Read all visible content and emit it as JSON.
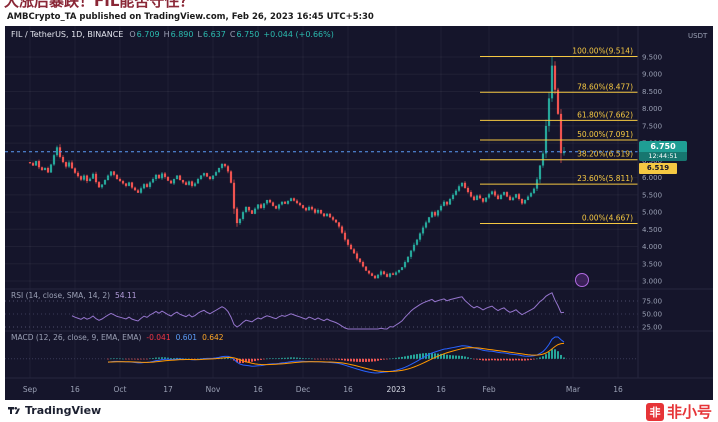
{
  "page": {
    "clipped_title": "大涨后暴跌！FIL能否守住？",
    "byline": "AMBCrypto_TA published on TradingView.com, Feb 26, 2023 16:45 UTC+5:30"
  },
  "legend": {
    "symbol": "FIL / TetherUS, 1D, BINANCE",
    "o_label": "O",
    "o": "6.709",
    "h_label": "H",
    "h": "6.890",
    "l_label": "L",
    "l": "6.637",
    "c_label": "C",
    "c": "6.750",
    "change": "+0.044 (+0.66%)"
  },
  "price_scale": {
    "currency": "USDT",
    "labels": [
      "9.500",
      "9.000",
      "8.500",
      "8.000",
      "7.500",
      "7.000",
      "6.500",
      "6.000",
      "5.500",
      "5.000",
      "4.500",
      "4.000",
      "3.500",
      "3.000"
    ]
  },
  "badges": {
    "price": "6.750",
    "countdown": "12:44:51",
    "fib_badge": "6.519"
  },
  "fib_levels": [
    {
      "label": "100.00%(9.514)",
      "price": 9.514
    },
    {
      "label": "78.60%(8.477)",
      "price": 8.477
    },
    {
      "label": "61.80%(7.662)",
      "price": 7.662
    },
    {
      "label": "50.00%(7.091)",
      "price": 7.091
    },
    {
      "label": "38.20%(6.519)",
      "price": 6.519
    },
    {
      "label": "23.60%(5.811)",
      "price": 5.811
    },
    {
      "label": "0.00%(4.667)",
      "price": 4.667
    }
  ],
  "rsi": {
    "title": "RSI (14, close, SMA, 14, 2)",
    "value": "54.11",
    "scale": [
      "75.00",
      "50.00",
      "25.00"
    ],
    "scale_values": [
      75,
      50,
      25
    ]
  },
  "macd": {
    "title": "MACD (12, 26, close, 9, EMA, EMA)",
    "hist": "-0.041",
    "macd": "0.601",
    "signal": "0.642"
  },
  "time_axis": [
    {
      "label": "Sep",
      "day": 0
    },
    {
      "label": "16",
      "day": 15
    },
    {
      "label": "Oct",
      "day": 30
    },
    {
      "label": "17",
      "day": 46
    },
    {
      "label": "Nov",
      "day": 61
    },
    {
      "label": "16",
      "day": 76
    },
    {
      "label": "Dec",
      "day": 91
    },
    {
      "label": "16",
      "day": 106
    },
    {
      "label": "2023",
      "day": 122,
      "bright": true
    },
    {
      "label": "16",
      "day": 137
    },
    {
      "label": "Feb",
      "day": 153
    },
    {
      "label": "Mar",
      "day": 181
    },
    {
      "label": "16",
      "day": 196
    }
  ],
  "footer": {
    "tradingview": "TradingView",
    "watermark": "非小号",
    "watermark_icon": "非"
  },
  "colors": {
    "up": "#26a69a",
    "down": "#ef5350",
    "fib": "#f5c842",
    "dashed_close": "#5b9cf6",
    "rsi_line": "#9575cd",
    "macd_line": "#2962ff",
    "signal_line": "#ff9800",
    "axis_text": "#9aa0b4",
    "separator": "#26263f",
    "grid": "rgba(255,255,255,0.05)"
  },
  "chart_data": {
    "type": "candlestick",
    "title": "FIL / TetherUS, 1D, BINANCE",
    "ylabel": "Price (USDT)",
    "ylim": [
      2.8,
      10.4
    ],
    "x_start": "2022-09-01",
    "x_end": "2023-02-26",
    "last_close": 6.75,
    "closes": [
      6.42,
      6.35,
      6.48,
      6.3,
      6.22,
      6.28,
      6.15,
      6.38,
      6.65,
      6.88,
      6.6,
      6.45,
      6.32,
      6.44,
      6.27,
      6.14,
      6.04,
      5.94,
      6.06,
      5.9,
      5.97,
      6.11,
      5.87,
      5.72,
      5.8,
      5.93,
      6.06,
      6.18,
      6.08,
      5.96,
      5.9,
      5.83,
      5.76,
      5.86,
      5.71,
      5.63,
      5.56,
      5.69,
      5.81,
      5.73,
      5.86,
      5.96,
      6.08,
      5.98,
      6.12,
      6.02,
      5.91,
      5.83,
      5.96,
      6.06,
      5.93,
      5.86,
      5.79,
      5.89,
      5.76,
      5.83,
      5.96,
      6.06,
      6.13,
      6.03,
      5.96,
      6.06,
      6.16,
      6.28,
      6.4,
      6.33,
      6.18,
      5.85,
      5.1,
      4.68,
      4.8,
      5.0,
      5.15,
      5.05,
      4.95,
      5.1,
      5.22,
      5.12,
      5.25,
      5.35,
      5.28,
      5.18,
      5.1,
      5.22,
      5.3,
      5.24,
      5.32,
      5.4,
      5.33,
      5.26,
      5.2,
      5.12,
      5.05,
      5.15,
      5.08,
      4.98,
      5.06,
      4.96,
      4.88,
      4.95,
      4.85,
      4.78,
      4.7,
      4.58,
      4.4,
      4.2,
      4.05,
      3.92,
      3.8,
      3.65,
      3.55,
      3.42,
      3.3,
      3.22,
      3.15,
      3.08,
      3.18,
      3.28,
      3.2,
      3.12,
      3.22,
      3.18,
      3.25,
      3.32,
      3.4,
      3.55,
      3.7,
      3.88,
      4.05,
      4.2,
      4.38,
      4.55,
      4.7,
      4.85,
      5.0,
      4.9,
      5.05,
      5.18,
      5.3,
      5.22,
      5.38,
      5.5,
      5.62,
      5.75,
      5.85,
      5.7,
      5.58,
      5.45,
      5.35,
      5.48,
      5.4,
      5.3,
      5.42,
      5.52,
      5.6,
      5.48,
      5.38,
      5.5,
      5.58,
      5.45,
      5.35,
      5.42,
      5.52,
      5.38,
      5.25,
      5.35,
      5.45,
      5.55,
      5.68,
      5.95,
      6.35,
      6.7,
      7.5,
      8.3,
      9.25,
      8.55,
      7.85,
      6.71,
      6.75
    ],
    "overrides": {
      "174": {
        "h": 9.514
      },
      "178": {
        "o": 6.709,
        "h": 6.89,
        "l": 6.637,
        "c": 6.75
      }
    },
    "fib_retracement": [
      {
        "pct": 100.0,
        "price": 9.514
      },
      {
        "pct": 78.6,
        "price": 8.477
      },
      {
        "pct": 61.8,
        "price": 7.662
      },
      {
        "pct": 50.0,
        "price": 7.091
      },
      {
        "pct": 38.2,
        "price": 6.519
      },
      {
        "pct": 23.6,
        "price": 5.811
      },
      {
        "pct": 0.0,
        "price": 4.667
      }
    ],
    "indicators": {
      "rsi_current": 54.11,
      "macd_hist": -0.041,
      "macd_line": 0.601,
      "macd_signal": 0.642
    }
  }
}
